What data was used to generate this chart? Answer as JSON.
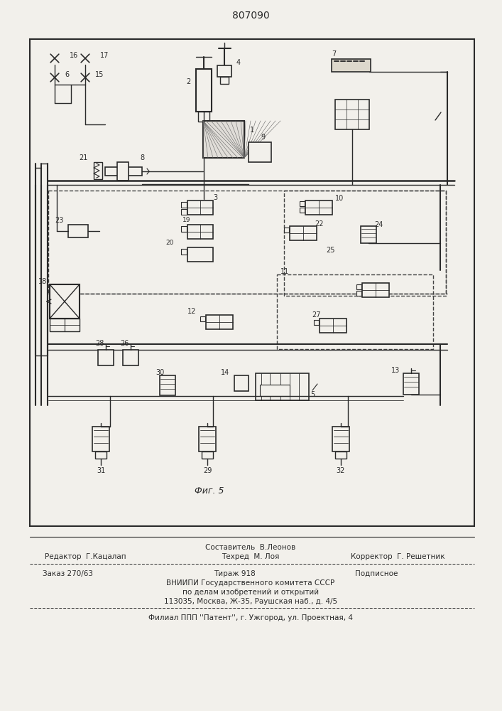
{
  "patent_number": "807090",
  "fig_label": "Фиг. 5",
  "bg_color": "#f2f0eb",
  "line_color": "#2a2a2a",
  "footer_sestavitel": "Составитель  В.Леонов",
  "footer_redaktor": "Редактор  Г.Кацалап",
  "footer_tehred": "Техред  М. Лоя",
  "footer_korrektor": "Корректор  Г. Решетник",
  "footer_zakaz": "Заказ 270/63",
  "footer_tirazh": "Тираж 918",
  "footer_podpisnoe": "Подписное",
  "footer_vniip1": "ВНИИПИ Государственного комитета СССР",
  "footer_vniip2": "по делам изобретений и открытий",
  "footer_vniip3": "113035, Москва, Ж-35, Раушская наб., д. 4/5",
  "footer_filial": "Филиал ППП ''Патент'', г. Ужгород, ул. Проектная, 4"
}
